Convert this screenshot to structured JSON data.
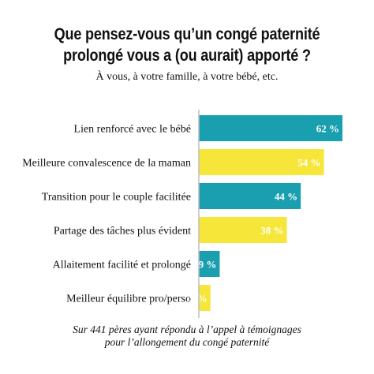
{
  "chart_data": {
    "type": "bar",
    "orientation": "horizontal",
    "title_lines": [
      "Que pensez-vous qu’un congé paternité",
      "prolongé vous a (ou aurait) apporté ?"
    ],
    "subtitle": "À vous, à votre famille, à votre bébé, etc.",
    "categories": [
      "Lien renforcé avec le bébé",
      "Meilleure convalescence de la maman",
      "Transition pour le couple facilitée",
      "Partage des tâches plus évident",
      "Allaitement facilité et prolongé",
      "Meilleur équilibre pro/perso"
    ],
    "values": [
      62,
      54,
      44,
      38,
      9,
      5
    ],
    "value_labels": [
      "62 %",
      "54 %",
      "44 %",
      "38 %",
      "9 %",
      "5 %"
    ],
    "bar_colors": [
      "#1a9fb0",
      "#f6e63a",
      "#1a9fb0",
      "#f6e63a",
      "#1a9fb0",
      "#f6e63a"
    ],
    "label_color": "#ffffff",
    "xlim": [
      0,
      62
    ],
    "grid": false,
    "footnote_lines": [
      "Sur 441 pères ayant répondu à l’appel à témoignages",
      "pour l’allongement du congé paternité"
    ]
  }
}
